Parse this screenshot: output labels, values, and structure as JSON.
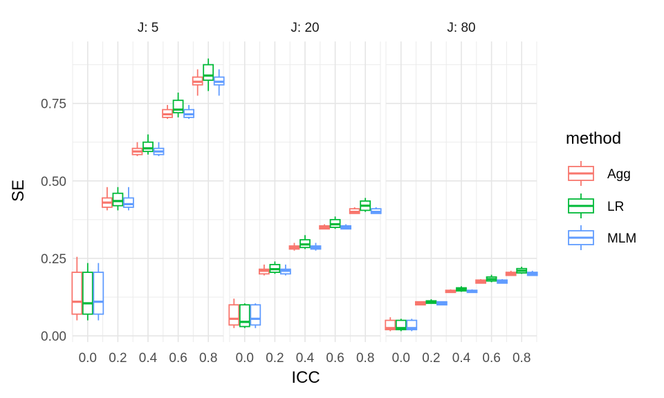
{
  "chart_data": {
    "type": "boxplot",
    "xlabel": "ICC",
    "ylabel": "SE",
    "x_ticks": [
      "0.0",
      "0.2",
      "0.4",
      "0.6",
      "0.8"
    ],
    "y_ticks": [
      "0.00",
      "0.25",
      "0.50",
      "0.75"
    ],
    "ylim": [
      -0.02,
      0.95
    ],
    "xlim": [
      -0.1,
      0.9
    ],
    "grid": true,
    "legend": {
      "title": "method",
      "position": "right",
      "entries": [
        "Agg",
        "LR",
        "MLM"
      ]
    },
    "colors": {
      "Agg": "#F8766D",
      "LR": "#00BA38",
      "MLM": "#619CFF"
    },
    "facets": [
      {
        "label": "J: 5",
        "groups": [
          {
            "icc": 0.0,
            "series": {
              "Agg": {
                "min": 0.05,
                "q1": 0.07,
                "median": 0.11,
                "q3": 0.205,
                "max": 0.255
              },
              "LR": {
                "min": 0.05,
                "q1": 0.07,
                "median": 0.105,
                "q3": 0.205,
                "max": 0.235
              },
              "MLM": {
                "min": 0.05,
                "q1": 0.07,
                "median": 0.11,
                "q3": 0.205,
                "max": 0.235
              }
            }
          },
          {
            "icc": 0.2,
            "series": {
              "Agg": {
                "min": 0.405,
                "q1": 0.415,
                "median": 0.43,
                "q3": 0.445,
                "max": 0.48
              },
              "LR": {
                "min": 0.405,
                "q1": 0.42,
                "median": 0.435,
                "q3": 0.46,
                "max": 0.48
              },
              "MLM": {
                "min": 0.405,
                "q1": 0.415,
                "median": 0.425,
                "q3": 0.445,
                "max": 0.48
              }
            }
          },
          {
            "icc": 0.4,
            "series": {
              "Agg": {
                "min": 0.58,
                "q1": 0.585,
                "median": 0.595,
                "q3": 0.605,
                "max": 0.625
              },
              "LR": {
                "min": 0.585,
                "q1": 0.595,
                "median": 0.605,
                "q3": 0.625,
                "max": 0.65
              },
              "MLM": {
                "min": 0.58,
                "q1": 0.585,
                "median": 0.595,
                "q3": 0.605,
                "max": 0.625
              }
            }
          },
          {
            "icc": 0.6,
            "series": {
              "Agg": {
                "min": 0.7,
                "q1": 0.705,
                "median": 0.715,
                "q3": 0.73,
                "max": 0.745
              },
              "LR": {
                "min": 0.705,
                "q1": 0.72,
                "median": 0.73,
                "q3": 0.76,
                "max": 0.785
              },
              "MLM": {
                "min": 0.7,
                "q1": 0.705,
                "median": 0.715,
                "q3": 0.73,
                "max": 0.745
              }
            }
          },
          {
            "icc": 0.8,
            "series": {
              "Agg": {
                "min": 0.775,
                "q1": 0.81,
                "median": 0.82,
                "q3": 0.835,
                "max": 0.86
              },
              "LR": {
                "min": 0.79,
                "q1": 0.825,
                "median": 0.84,
                "q3": 0.875,
                "max": 0.895
              },
              "MLM": {
                "min": 0.775,
                "q1": 0.81,
                "median": 0.82,
                "q3": 0.835,
                "max": 0.86
              }
            }
          }
        ]
      },
      {
        "label": "J: 20",
        "groups": [
          {
            "icc": 0.0,
            "series": {
              "Agg": {
                "min": 0.025,
                "q1": 0.035,
                "median": 0.055,
                "q3": 0.1,
                "max": 0.12
              },
              "LR": {
                "min": 0.025,
                "q1": 0.03,
                "median": 0.045,
                "q3": 0.1,
                "max": 0.105
              },
              "MLM": {
                "min": 0.025,
                "q1": 0.035,
                "median": 0.055,
                "q3": 0.1,
                "max": 0.105
              }
            }
          },
          {
            "icc": 0.2,
            "series": {
              "Agg": {
                "min": 0.195,
                "q1": 0.2,
                "median": 0.21,
                "q3": 0.215,
                "max": 0.23
              },
              "LR": {
                "min": 0.2,
                "q1": 0.205,
                "median": 0.215,
                "q3": 0.23,
                "max": 0.24
              },
              "MLM": {
                "min": 0.195,
                "q1": 0.2,
                "median": 0.21,
                "q3": 0.215,
                "max": 0.23
              }
            }
          },
          {
            "icc": 0.4,
            "series": {
              "Agg": {
                "min": 0.275,
                "q1": 0.28,
                "median": 0.285,
                "q3": 0.29,
                "max": 0.3
              },
              "LR": {
                "min": 0.28,
                "q1": 0.285,
                "median": 0.295,
                "q3": 0.31,
                "max": 0.325
              },
              "MLM": {
                "min": 0.275,
                "q1": 0.28,
                "median": 0.285,
                "q3": 0.29,
                "max": 0.3
              }
            }
          },
          {
            "icc": 0.6,
            "series": {
              "Agg": {
                "min": 0.345,
                "q1": 0.345,
                "median": 0.35,
                "q3": 0.355,
                "max": 0.36
              },
              "LR": {
                "min": 0.345,
                "q1": 0.35,
                "median": 0.36,
                "q3": 0.375,
                "max": 0.385
              },
              "MLM": {
                "min": 0.345,
                "q1": 0.345,
                "median": 0.35,
                "q3": 0.355,
                "max": 0.36
              }
            }
          },
          {
            "icc": 0.8,
            "series": {
              "Agg": {
                "min": 0.395,
                "q1": 0.395,
                "median": 0.4,
                "q3": 0.41,
                "max": 0.415
              },
              "LR": {
                "min": 0.4,
                "q1": 0.405,
                "median": 0.42,
                "q3": 0.435,
                "max": 0.445
              },
              "MLM": {
                "min": 0.395,
                "q1": 0.395,
                "median": 0.4,
                "q3": 0.41,
                "max": 0.415
              }
            }
          }
        ]
      },
      {
        "label": "J: 80",
        "groups": [
          {
            "icc": 0.0,
            "series": {
              "Agg": {
                "min": 0.015,
                "q1": 0.02,
                "median": 0.025,
                "q3": 0.05,
                "max": 0.06
              },
              "LR": {
                "min": 0.015,
                "q1": 0.02,
                "median": 0.025,
                "q3": 0.05,
                "max": 0.055
              },
              "MLM": {
                "min": 0.015,
                "q1": 0.02,
                "median": 0.025,
                "q3": 0.05,
                "max": 0.055
              }
            }
          },
          {
            "icc": 0.2,
            "series": {
              "Agg": {
                "min": 0.1,
                "q1": 0.1,
                "median": 0.105,
                "q3": 0.11,
                "max": 0.11
              },
              "LR": {
                "min": 0.105,
                "q1": 0.105,
                "median": 0.11,
                "q3": 0.113,
                "max": 0.118
              },
              "MLM": {
                "min": 0.1,
                "q1": 0.1,
                "median": 0.105,
                "q3": 0.11,
                "max": 0.11
              }
            }
          },
          {
            "icc": 0.4,
            "series": {
              "Agg": {
                "min": 0.14,
                "q1": 0.14,
                "median": 0.143,
                "q3": 0.147,
                "max": 0.15
              },
              "LR": {
                "min": 0.142,
                "q1": 0.145,
                "median": 0.15,
                "q3": 0.155,
                "max": 0.16
              },
              "MLM": {
                "min": 0.14,
                "q1": 0.14,
                "median": 0.143,
                "q3": 0.147,
                "max": 0.15
              }
            }
          },
          {
            "icc": 0.6,
            "series": {
              "Agg": {
                "min": 0.17,
                "q1": 0.17,
                "median": 0.175,
                "q3": 0.18,
                "max": 0.183
              },
              "LR": {
                "min": 0.173,
                "q1": 0.177,
                "median": 0.183,
                "q3": 0.19,
                "max": 0.197
              },
              "MLM": {
                "min": 0.17,
                "q1": 0.17,
                "median": 0.175,
                "q3": 0.18,
                "max": 0.183
              }
            }
          },
          {
            "icc": 0.8,
            "series": {
              "Agg": {
                "min": 0.195,
                "q1": 0.195,
                "median": 0.2,
                "q3": 0.205,
                "max": 0.21
              },
              "LR": {
                "min": 0.2,
                "q1": 0.203,
                "median": 0.21,
                "q3": 0.217,
                "max": 0.223
              },
              "MLM": {
                "min": 0.195,
                "q1": 0.195,
                "median": 0.2,
                "q3": 0.205,
                "max": 0.21
              }
            }
          }
        ]
      }
    ]
  }
}
